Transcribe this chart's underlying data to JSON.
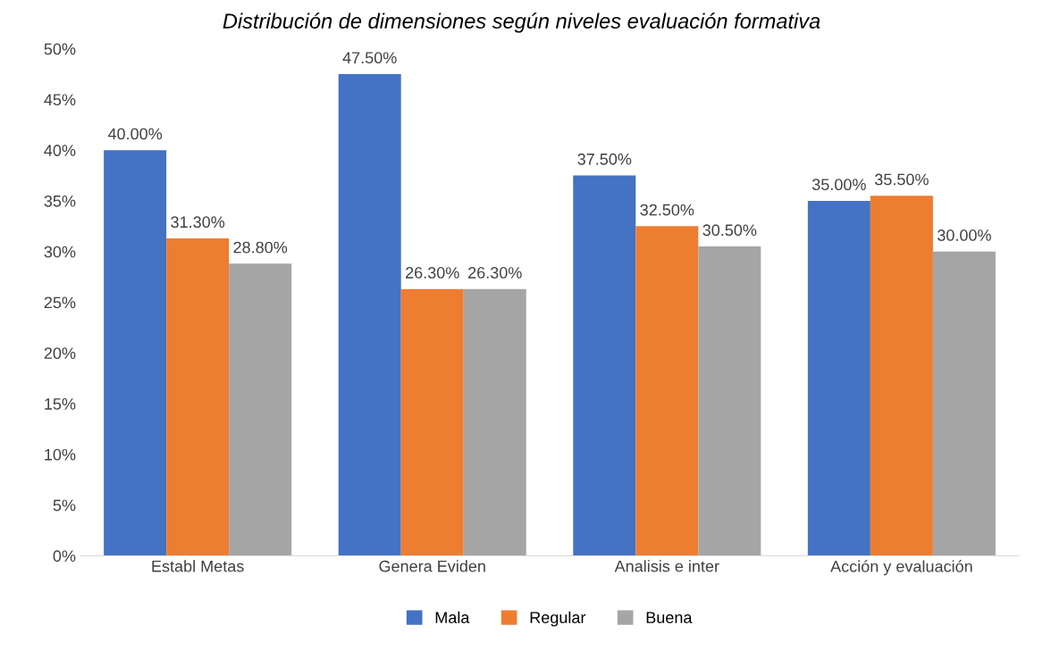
{
  "chart_data": {
    "type": "bar",
    "title": "Distribución de dimensiones según niveles evaluación formativa",
    "categories": [
      "Establ Metas",
      "Genera Eviden",
      "Analisis e inter",
      "Acción y evaluación"
    ],
    "series": [
      {
        "name": "Mala",
        "color": "#4472c4",
        "values": [
          40.0,
          47.5,
          37.5,
          35.0
        ],
        "value_labels": [
          "40.00%",
          "47.50%",
          "37.50%",
          "35.00%"
        ]
      },
      {
        "name": "Regular",
        "color": "#ed7d31",
        "values": [
          31.3,
          26.3,
          32.5,
          35.5
        ],
        "value_labels": [
          "31.30%",
          "26.30%",
          "32.50%",
          "35.50%"
        ]
      },
      {
        "name": "Buena",
        "color": "#a5a5a5",
        "values": [
          28.8,
          26.3,
          30.5,
          30.0
        ],
        "value_labels": [
          "28.80%",
          "26.30%",
          "30.50%",
          "30.00%"
        ]
      }
    ],
    "ylim": [
      0,
      50
    ],
    "yticks": [
      {
        "value": 0,
        "label": "0%"
      },
      {
        "value": 5,
        "label": "5%"
      },
      {
        "value": 10,
        "label": "10%"
      },
      {
        "value": 15,
        "label": "15%"
      },
      {
        "value": 20,
        "label": "20%"
      },
      {
        "value": 25,
        "label": "25%"
      },
      {
        "value": 30,
        "label": "30%"
      },
      {
        "value": 35,
        "label": "35%"
      },
      {
        "value": 40,
        "label": "40%"
      },
      {
        "value": 45,
        "label": "45%"
      },
      {
        "value": 50,
        "label": "50%"
      }
    ],
    "grid": false,
    "legend": "bottom"
  }
}
